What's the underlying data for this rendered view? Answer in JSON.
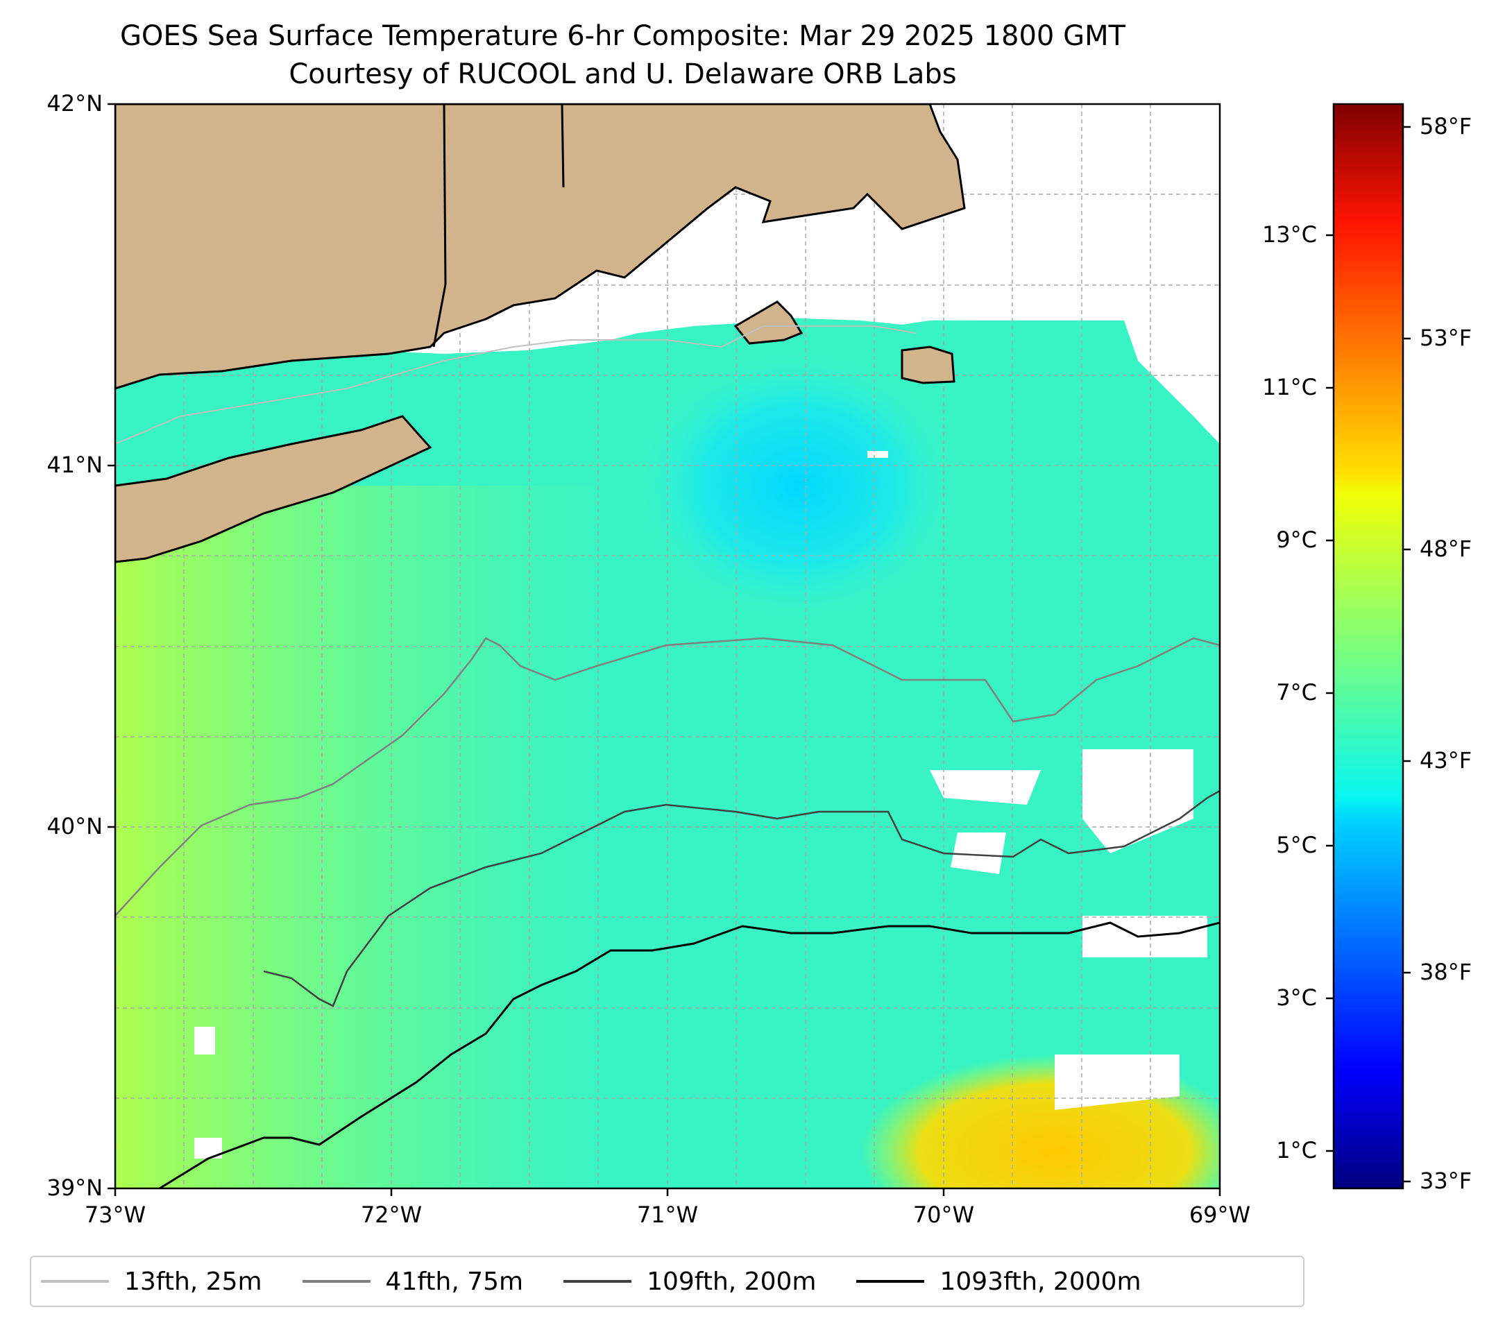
{
  "title": "GOES Sea Surface Temperature 6-hr Composite: Mar 29 2025 1800 GMT",
  "subtitle": "Courtesy of RUCOOL and U. Delaware ORB Labs",
  "map": {
    "lon_range": [
      -73,
      -69
    ],
    "lat_range": [
      39,
      42
    ],
    "lon_ticks": [
      "73°W",
      "72°W",
      "71°W",
      "70°W",
      "69°W"
    ],
    "lat_ticks": [
      "42°N",
      "41°N",
      "40°N",
      "39°N"
    ],
    "gridlines": true,
    "land_color": "#d2b48c",
    "no_data_color": "#ffffff"
  },
  "colorbar": {
    "colormap": "jet",
    "celsius_ticks": [
      "1°C",
      "3°C",
      "5°C",
      "7°C",
      "9°C",
      "11°C",
      "13°C"
    ],
    "fahrenheit_ticks": [
      "33°F",
      "38°F",
      "43°F",
      "48°F",
      "53°F",
      "58°F"
    ],
    "range_f": [
      33,
      59
    ]
  },
  "legend": [
    {
      "label": "13fth, 25m",
      "color": "#c0c0c0"
    },
    {
      "label": "41fth, 75m",
      "color": "#808080"
    },
    {
      "label": "109fth, 200m",
      "color": "#404040"
    },
    {
      "label": "1093fth, 2000m",
      "color": "#000000"
    }
  ]
}
